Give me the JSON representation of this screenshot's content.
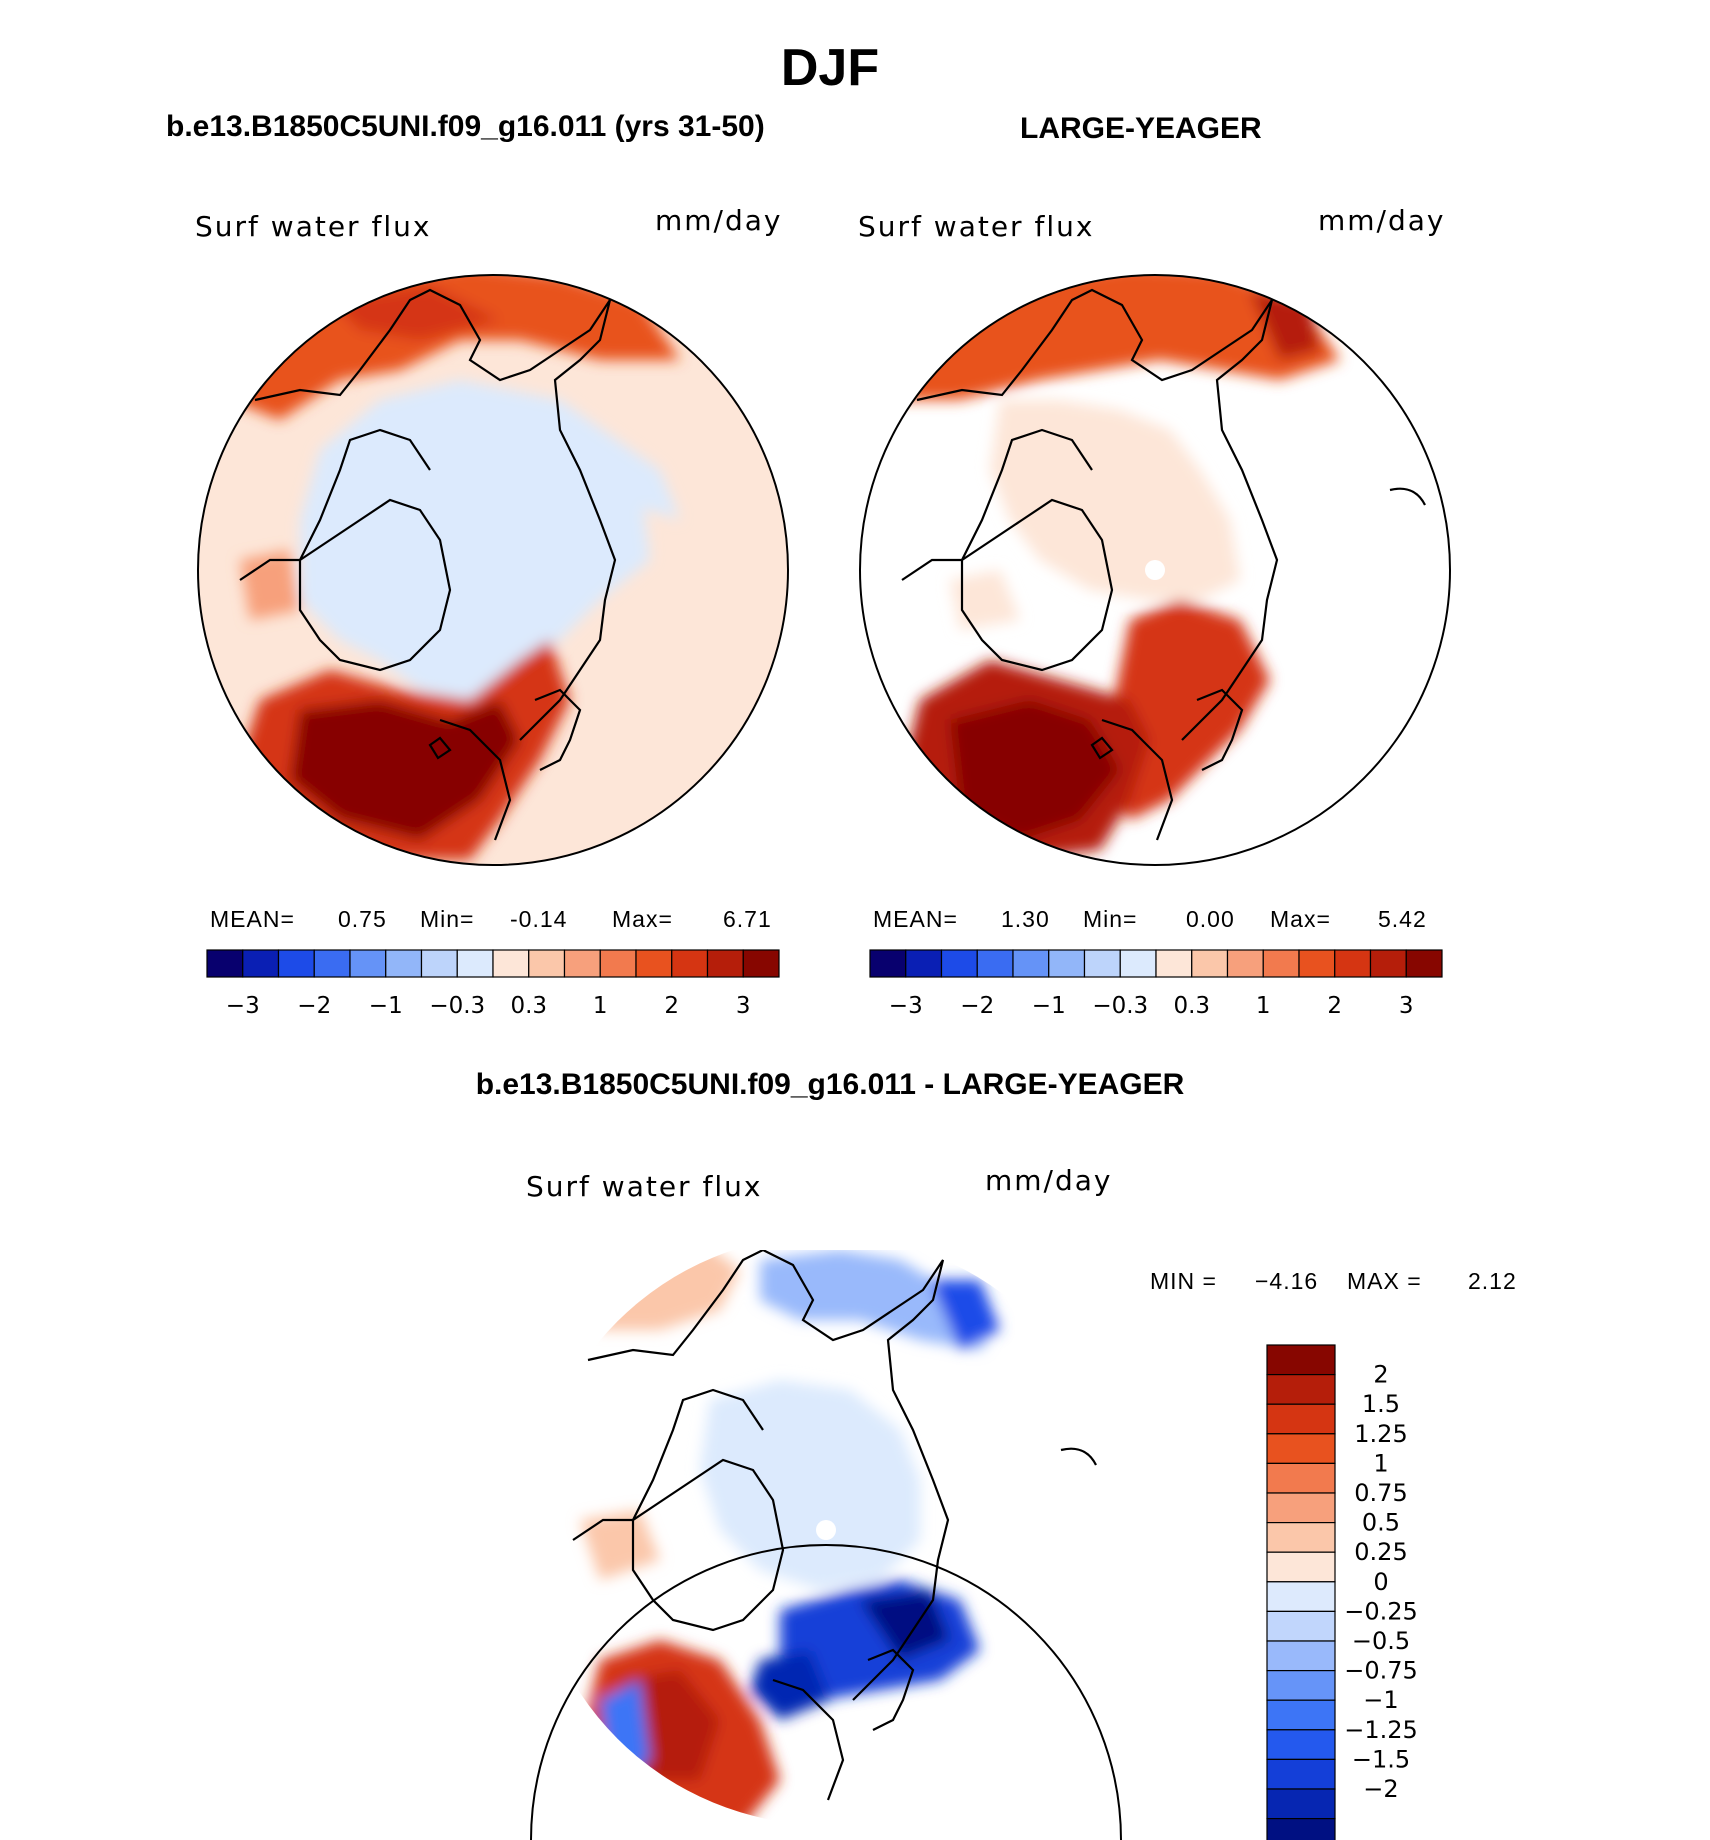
{
  "main_title": "DJF",
  "left_title": "b.e13.B1850C5UNI.f09_g16.011 (yrs 31-50)",
  "right_title": "LARGE-YEAGER",
  "bottom_title": "b.e13.B1850C5UNI.f09_g16.011 - LARGE-YEAGER",
  "palettes": {
    "main": [
      "#08006e",
      "#0a1fb4",
      "#1d4be8",
      "#3a6cf2",
      "#6593f7",
      "#92b6f9",
      "#bdd4fb",
      "#dceafd",
      "#fde6d8",
      "#fbc7aa",
      "#f7a07c",
      "#f27a4e",
      "#e8521f",
      "#d53512",
      "#b51e0a",
      "#870600"
    ],
    "diff": [
      "#001082",
      "#0626b2",
      "#143fd8",
      "#2459ee",
      "#3d75f6",
      "#6694f8",
      "#99b9fb",
      "#c1d6fc",
      "#ddeafd",
      "#fde6d8",
      "#fbc7aa",
      "#f7a07c",
      "#f27a4e",
      "#e8521f",
      "#d53512",
      "#b51e0a",
      "#870600"
    ]
  },
  "chart_data": [
    {
      "type": "heatmap",
      "projection": "polar-stereographic-north",
      "field": "Surf water flux",
      "units": "mm/day",
      "title": "b.e13.B1850C5UNI.f09_g16.011 (yrs 31-50)",
      "stats": {
        "mean_label": "MEAN=",
        "mean": "0.75",
        "min_label": "Min=",
        "min": "-0.14",
        "max_label": "Max=",
        "max": "6.71"
      },
      "levels": [
        -4,
        -3,
        -2.5,
        -2,
        -1.5,
        -1,
        -0.5,
        -0.3,
        0,
        0.3,
        0.5,
        1,
        1.5,
        2,
        2.5,
        3
      ],
      "colorbar_ticks": [
        "−3",
        "−2",
        "−1",
        "−0.3",
        "0.3",
        "1",
        "2",
        "3"
      ]
    },
    {
      "type": "heatmap",
      "projection": "polar-stereographic-north",
      "field": "Surf water flux",
      "units": "mm/day",
      "title": "LARGE-YEAGER",
      "stats": {
        "mean_label": "MEAN=",
        "mean": "1.30",
        "min_label": "Min=",
        "min": "0.00",
        "max_label": "Max=",
        "max": "5.42"
      },
      "levels": [
        -4,
        -3,
        -2.5,
        -2,
        -1.5,
        -1,
        -0.5,
        -0.3,
        0,
        0.3,
        0.5,
        1,
        1.5,
        2,
        2.5,
        3
      ],
      "colorbar_ticks": [
        "−3",
        "−2",
        "−1",
        "−0.3",
        "0.3",
        "1",
        "2",
        "3"
      ]
    },
    {
      "type": "heatmap",
      "projection": "polar-stereographic-north",
      "field": "Surf water flux",
      "units": "mm/day",
      "title": "b.e13.B1850C5UNI.f09_g16.011 - LARGE-YEAGER",
      "stats": {
        "min_label": "MIN =",
        "min": "−4.16",
        "max_label": "MAX =",
        "max": "2.12"
      },
      "colorbar_labels": [
        "2",
        "1.5",
        "1.25",
        "1",
        "0.75",
        "0.5",
        "0.25",
        "0",
        "−0.25",
        "−0.5",
        "−0.75",
        "−1",
        "−1.25",
        "−1.5",
        "−2"
      ]
    }
  ]
}
